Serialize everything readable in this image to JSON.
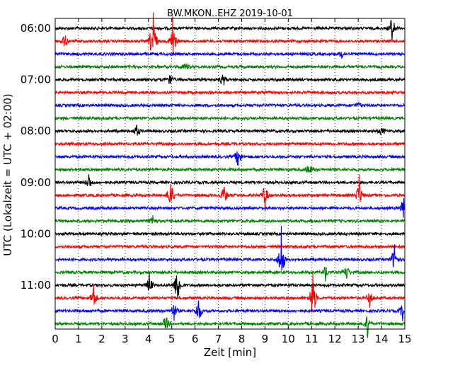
{
  "chart_data": {
    "type": "line",
    "title": "BW.MKON..EHZ 2019-10-01",
    "xlabel": "Zeit  [min]",
    "ylabel": "UTC (Lokalzeit = UTC + 02:00)",
    "xlim": [
      0,
      15
    ],
    "x_ticks": [
      "0",
      "1",
      "2",
      "3",
      "4",
      "5",
      "6",
      "7",
      "8",
      "9",
      "10",
      "11",
      "12",
      "13",
      "14",
      "15"
    ],
    "y_ticks": [
      "06:00",
      "07:00",
      "08:00",
      "09:00",
      "10:00",
      "11:00"
    ],
    "grid": "vertical-dotted",
    "trace_interval_minutes": 15,
    "trace_colors": [
      "#000000",
      "#ff0000",
      "#0000ff",
      "#008000"
    ],
    "traces": [
      {
        "start": "06:00",
        "color": "#000000",
        "events": [
          {
            "t": 14.45,
            "amp": 1.0
          }
        ]
      },
      {
        "start": "06:15",
        "color": "#ff0000",
        "events": [
          {
            "t": 0.4,
            "amp": 0.6
          },
          {
            "t": 4.2,
            "amp": 2.4
          },
          {
            "t": 5.05,
            "amp": 1.3
          }
        ]
      },
      {
        "start": "06:30",
        "color": "#0000ff",
        "events": [
          {
            "t": 12.3,
            "amp": 0.3
          }
        ]
      },
      {
        "start": "06:45",
        "color": "#008000",
        "events": [
          {
            "t": 5.6,
            "amp": 0.3
          }
        ]
      },
      {
        "start": "07:00",
        "color": "#000000",
        "events": [
          {
            "t": 4.9,
            "amp": 0.6
          },
          {
            "t": 7.2,
            "amp": 0.6
          }
        ]
      },
      {
        "start": "07:15",
        "color": "#ff0000",
        "events": []
      },
      {
        "start": "07:30",
        "color": "#0000ff",
        "events": [
          {
            "t": 13.0,
            "amp": 0.3
          }
        ]
      },
      {
        "start": "07:45",
        "color": "#008000",
        "events": []
      },
      {
        "start": "08:00",
        "color": "#000000",
        "events": [
          {
            "t": 3.5,
            "amp": 0.4
          },
          {
            "t": 14.0,
            "amp": 0.3
          }
        ]
      },
      {
        "start": "08:15",
        "color": "#ff0000",
        "events": []
      },
      {
        "start": "08:30",
        "color": "#0000ff",
        "events": [
          {
            "t": 7.85,
            "amp": 0.9
          }
        ]
      },
      {
        "start": "08:45",
        "color": "#008000",
        "events": [
          {
            "t": 10.9,
            "amp": 0.4
          }
        ]
      },
      {
        "start": "09:00",
        "color": "#000000",
        "events": [
          {
            "t": 1.45,
            "amp": 0.5
          }
        ]
      },
      {
        "start": "09:15",
        "color": "#ff0000",
        "events": [
          {
            "t": 4.95,
            "amp": 1.1
          },
          {
            "t": 7.25,
            "amp": 0.7
          },
          {
            "t": 9.0,
            "amp": 0.8
          },
          {
            "t": 13.05,
            "amp": 1.1
          }
        ]
      },
      {
        "start": "09:30",
        "color": "#0000ff",
        "events": [
          {
            "t": 14.95,
            "amp": 0.9
          }
        ]
      },
      {
        "start": "09:45",
        "color": "#008000",
        "events": [
          {
            "t": 4.2,
            "amp": 0.3
          }
        ]
      },
      {
        "start": "10:00",
        "color": "#000000",
        "events": []
      },
      {
        "start": "10:15",
        "color": "#ff0000",
        "events": []
      },
      {
        "start": "10:30",
        "color": "#0000ff",
        "events": [
          {
            "t": 9.7,
            "amp": 1.8
          },
          {
            "t": 14.55,
            "amp": 1.1
          }
        ]
      },
      {
        "start": "10:45",
        "color": "#008000",
        "events": [
          {
            "t": 11.6,
            "amp": 0.5
          },
          {
            "t": 12.5,
            "amp": 0.5
          }
        ]
      },
      {
        "start": "11:00",
        "color": "#000000",
        "events": [
          {
            "t": 4.05,
            "amp": 0.6
          },
          {
            "t": 5.25,
            "amp": 1.5
          }
        ]
      },
      {
        "start": "11:15",
        "color": "#ff0000",
        "events": [
          {
            "t": 1.65,
            "amp": 0.8
          },
          {
            "t": 11.05,
            "amp": 1.9
          },
          {
            "t": 13.5,
            "amp": 0.5
          }
        ]
      },
      {
        "start": "11:30",
        "color": "#0000ff",
        "events": [
          {
            "t": 5.1,
            "amp": 0.6
          },
          {
            "t": 6.15,
            "amp": 0.9
          },
          {
            "t": 14.9,
            "amp": 0.5
          }
        ]
      },
      {
        "start": "11:45",
        "color": "#008000",
        "events": [
          {
            "t": 4.75,
            "amp": 0.6
          },
          {
            "t": 13.4,
            "amp": 0.8
          }
        ]
      }
    ]
  }
}
